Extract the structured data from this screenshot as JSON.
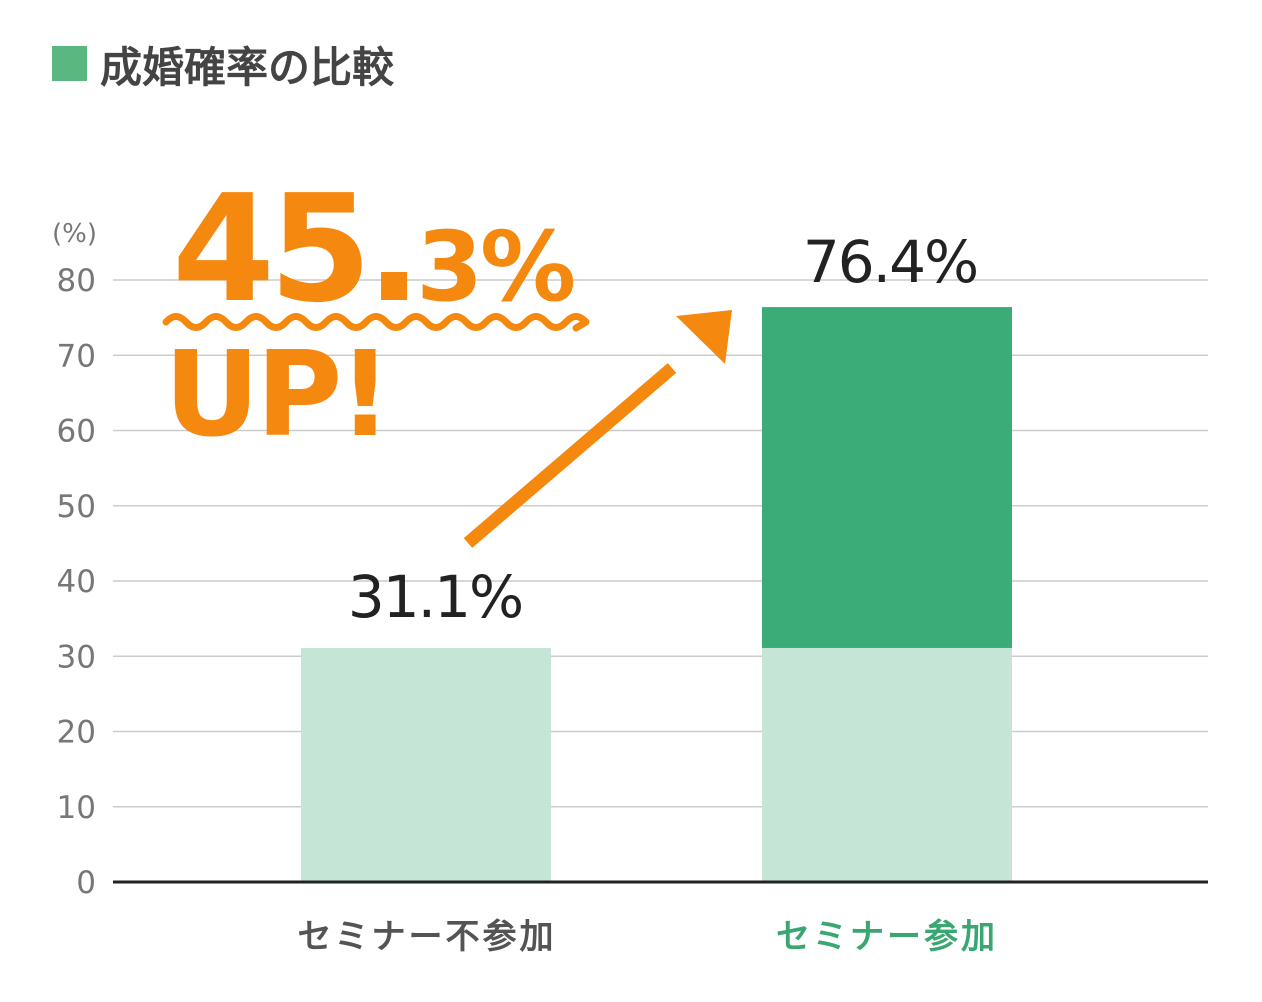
{
  "chart_data": {
    "type": "bar",
    "title": "成婚確率の比較",
    "unit_label": "(%)",
    "ylim": [
      0,
      80
    ],
    "yticks": [
      0,
      10,
      20,
      30,
      40,
      50,
      60,
      70,
      80
    ],
    "categories": [
      "セミナー不参加",
      "セミナー参加"
    ],
    "values": [
      31.1,
      76.4
    ],
    "value_labels": [
      "31.1%",
      "76.4%"
    ],
    "stack_base_value": 31.1,
    "annotation": {
      "big_text": "45.",
      "small_text": "3%",
      "sub_text": "UP!"
    },
    "colors": {
      "title_marker": "#5ab77f",
      "base_bar": "#c5e6d6",
      "increase_bar": "#3bab77",
      "accent": "#f5890f",
      "category_default": "#545454",
      "category_highlight": "#3aa672",
      "grid": "#cccccc",
      "axis": "#222222",
      "tick_text": "#777777",
      "value_text": "#222222"
    }
  }
}
